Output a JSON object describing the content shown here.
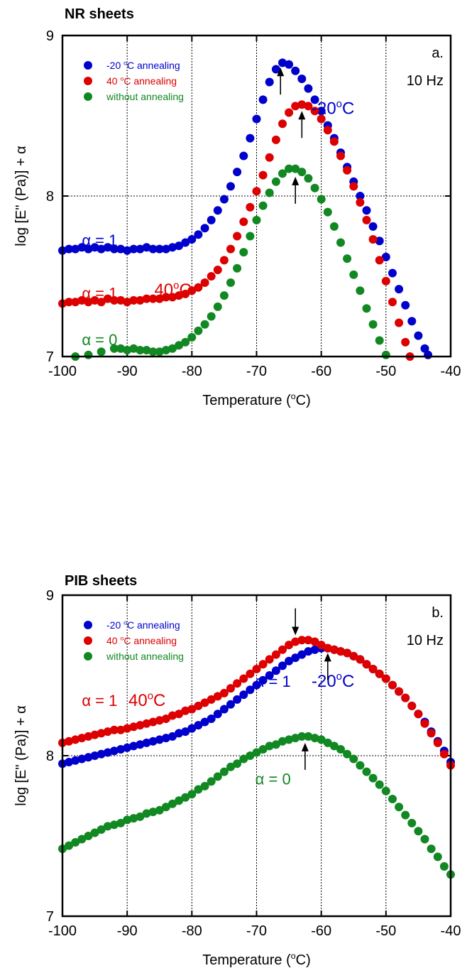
{
  "chart_data": [
    {
      "type": "scatter",
      "title": "NR sheets",
      "xlabel": "Temperature (oC)",
      "ylabel": "log [E\" (Pa)] + α",
      "xlim": [
        -100,
        -40
      ],
      "ylim": [
        7,
        9
      ],
      "xticks": [
        "-100",
        "-90",
        "-80",
        "-70",
        "-60",
        "-50",
        "-40"
      ],
      "yticks": [
        "7",
        "8",
        "9"
      ],
      "grid": true,
      "legend_position": "top-left",
      "panel_label": "a.",
      "frequency": "10 Hz",
      "series": [
        {
          "name": "-20 oC annealing",
          "color": "#0000cc",
          "x": [
            -100,
            -99,
            -98,
            -97,
            -96,
            -95,
            -94,
            -93,
            -92,
            -91,
            -90,
            -89,
            -88,
            -87,
            -86,
            -85,
            -84,
            -83,
            -82,
            -81,
            -80,
            -79,
            -78,
            -77,
            -76,
            -75,
            -74,
            -73,
            -72,
            -71,
            -70,
            -69,
            -68,
            -67,
            -66,
            -65,
            -64,
            -63,
            -62,
            -61,
            -60,
            -59,
            -58,
            -57,
            -56,
            -55,
            -54,
            -53,
            -52,
            -51,
            -50,
            -49,
            -48,
            -47,
            -46,
            -45,
            -44,
            -43.5
          ],
          "y": [
            7.66,
            7.67,
            7.67,
            7.68,
            7.67,
            7.68,
            7.67,
            7.68,
            7.67,
            7.67,
            7.66,
            7.67,
            7.67,
            7.68,
            7.67,
            7.67,
            7.67,
            7.68,
            7.69,
            7.71,
            7.73,
            7.76,
            7.8,
            7.85,
            7.91,
            7.98,
            8.06,
            8.15,
            8.25,
            8.36,
            8.48,
            8.6,
            8.71,
            8.79,
            8.83,
            8.82,
            8.78,
            8.73,
            8.67,
            8.6,
            8.53,
            8.44,
            8.36,
            8.27,
            8.18,
            8.09,
            8.0,
            7.91,
            7.81,
            7.72,
            7.62,
            7.52,
            7.42,
            7.32,
            7.22,
            7.13,
            7.05,
            7.01
          ]
        },
        {
          "name": "40 oC annealing",
          "color": "#dd0000",
          "x": [
            -100,
            -99,
            -98,
            -97,
            -96,
            -95,
            -94,
            -93,
            -92,
            -91,
            -90,
            -89,
            -88,
            -87,
            -86,
            -85,
            -84,
            -83,
            -82,
            -81,
            -80,
            -79,
            -78,
            -77,
            -76,
            -75,
            -74,
            -73,
            -72,
            -71,
            -70,
            -69,
            -68,
            -67,
            -66,
            -65,
            -64,
            -63,
            -62,
            -61,
            -60,
            -59,
            -58,
            -57,
            -56,
            -55,
            -54,
            -53,
            -52,
            -51,
            -50,
            -49,
            -48,
            -47,
            -46.3
          ],
          "y": [
            7.33,
            7.34,
            7.34,
            7.35,
            7.34,
            7.35,
            7.34,
            7.36,
            7.35,
            7.35,
            7.34,
            7.35,
            7.35,
            7.36,
            7.36,
            7.36,
            7.37,
            7.37,
            7.38,
            7.39,
            7.41,
            7.43,
            7.46,
            7.5,
            7.54,
            7.6,
            7.67,
            7.75,
            7.84,
            7.93,
            8.03,
            8.13,
            8.24,
            8.35,
            8.45,
            8.52,
            8.56,
            8.57,
            8.56,
            8.53,
            8.48,
            8.41,
            8.34,
            8.25,
            8.16,
            8.06,
            7.96,
            7.85,
            7.73,
            7.6,
            7.47,
            7.34,
            7.21,
            7.09,
            7.0
          ]
        },
        {
          "name": "without annealing",
          "color": "#118822",
          "x": [
            -98,
            -96,
            -94,
            -92,
            -91,
            -90,
            -89,
            -88,
            -87,
            -86,
            -85,
            -84,
            -83,
            -82,
            -81,
            -80,
            -79,
            -78,
            -77,
            -76,
            -75,
            -74,
            -73,
            -72,
            -71,
            -70,
            -69,
            -68,
            -67,
            -66,
            -65,
            -64,
            -63,
            -62,
            -61,
            -60,
            -59,
            -58,
            -57,
            -56,
            -55,
            -54,
            -53,
            -52,
            -51,
            -50
          ],
          "y": [
            7.0,
            7.01,
            7.03,
            7.05,
            7.05,
            7.04,
            7.05,
            7.04,
            7.04,
            7.03,
            7.03,
            7.04,
            7.05,
            7.07,
            7.09,
            7.12,
            7.16,
            7.2,
            7.25,
            7.31,
            7.38,
            7.46,
            7.55,
            7.65,
            7.75,
            7.85,
            7.94,
            8.02,
            8.09,
            8.14,
            8.17,
            8.17,
            8.15,
            8.11,
            8.05,
            7.98,
            7.9,
            7.81,
            7.71,
            7.61,
            7.51,
            7.41,
            7.3,
            7.2,
            7.1,
            7.01
          ]
        }
      ],
      "annotations": [
        {
          "text": "α = 1",
          "x": -97,
          "y": 7.69,
          "color": "#0000cc",
          "anchor": "start"
        },
        {
          "text": "α = 1",
          "x": -97,
          "y": 7.36,
          "color": "#dd0000",
          "anchor": "start"
        },
        {
          "text": "40oC",
          "x": -85.8,
          "y": 7.38,
          "color": "#dd0000",
          "anchor": "start"
        },
        {
          "text": "α = 0",
          "x": -97,
          "y": 7.07,
          "color": "#118822",
          "anchor": "start"
        },
        {
          "text": "-20oC",
          "x": -61.5,
          "y": 8.51,
          "color": "#0000cc",
          "anchor": "start"
        }
      ],
      "arrows": [
        {
          "x": -66.3,
          "y": 8.8,
          "direction": "up"
        },
        {
          "x": -63,
          "y": 8.53,
          "direction": "up"
        },
        {
          "x": -64,
          "y": 8.12,
          "direction": "up"
        }
      ]
    },
    {
      "type": "scatter",
      "title": "PIB sheets",
      "xlabel": "Temperature (oC)",
      "ylabel": "log [E\" (Pa)] + α",
      "xlim": [
        -100,
        -40
      ],
      "ylim": [
        7,
        9
      ],
      "xticks": [
        "-100",
        "-90",
        "-80",
        "-70",
        "-60",
        "-50",
        "-40"
      ],
      "yticks": [
        "7",
        "8",
        "9"
      ],
      "grid": true,
      "legend_position": "top-left",
      "panel_label": "b.",
      "frequency": "10 Hz",
      "series": [
        {
          "name": "-20 oC annealing",
          "color": "#0000cc",
          "x": [
            -100,
            -99,
            -98,
            -97,
            -96,
            -95,
            -94,
            -93,
            -92,
            -91,
            -90,
            -89,
            -88,
            -87,
            -86,
            -85,
            -84,
            -83,
            -82,
            -81,
            -80,
            -79,
            -78,
            -77,
            -76,
            -75,
            -74,
            -73,
            -72,
            -71,
            -70,
            -69,
            -68,
            -67,
            -66,
            -65,
            -64,
            -63,
            -62,
            -61,
            -60,
            -59,
            -58,
            -57,
            -56,
            -55,
            -54,
            -53,
            -52,
            -51,
            -50,
            -49,
            -48,
            -47,
            -46,
            -45,
            -44,
            -43,
            -42,
            -41,
            -40
          ],
          "y": [
            7.95,
            7.96,
            7.97,
            7.98,
            7.99,
            8.0,
            8.01,
            8.02,
            8.03,
            8.04,
            8.05,
            8.06,
            8.07,
            8.08,
            8.09,
            8.1,
            8.11,
            8.12,
            8.14,
            8.15,
            8.17,
            8.19,
            8.21,
            8.23,
            8.26,
            8.29,
            8.32,
            8.35,
            8.38,
            8.41,
            8.44,
            8.47,
            8.5,
            8.53,
            8.56,
            8.59,
            8.61,
            8.63,
            8.65,
            8.66,
            8.67,
            8.67,
            8.66,
            8.65,
            8.64,
            8.62,
            8.6,
            8.57,
            8.54,
            8.51,
            8.48,
            8.44,
            8.4,
            8.36,
            8.31,
            8.26,
            8.21,
            8.15,
            8.09,
            8.03,
            7.96
          ]
        },
        {
          "name": "40 oC annealing",
          "color": "#dd0000",
          "x": [
            -100,
            -99,
            -98,
            -97,
            -96,
            -95,
            -94,
            -93,
            -92,
            -91,
            -90,
            -89,
            -88,
            -87,
            -86,
            -85,
            -84,
            -83,
            -82,
            -81,
            -80,
            -79,
            -78,
            -77,
            -76,
            -75,
            -74,
            -73,
            -72,
            -71,
            -70,
            -69,
            -68,
            -67,
            -66,
            -65,
            -64,
            -63,
            -62,
            -61,
            -60,
            -59,
            -58,
            -57,
            -56,
            -55,
            -54,
            -53,
            -52,
            -51,
            -50,
            -49,
            -48,
            -47,
            -46,
            -45,
            -44,
            -43,
            -42,
            -41,
            -40
          ],
          "y": [
            8.08,
            8.09,
            8.1,
            8.11,
            8.12,
            8.13,
            8.14,
            8.15,
            8.16,
            8.16,
            8.17,
            8.18,
            8.19,
            8.2,
            8.21,
            8.22,
            8.23,
            8.25,
            8.26,
            8.28,
            8.29,
            8.31,
            8.33,
            8.35,
            8.37,
            8.39,
            8.42,
            8.45,
            8.48,
            8.51,
            8.54,
            8.57,
            8.6,
            8.63,
            8.66,
            8.69,
            8.71,
            8.72,
            8.72,
            8.71,
            8.69,
            8.67,
            8.66,
            8.65,
            8.64,
            8.62,
            8.6,
            8.57,
            8.54,
            8.51,
            8.48,
            8.44,
            8.4,
            8.36,
            8.31,
            8.26,
            8.2,
            8.14,
            8.08,
            8.01,
            7.94
          ]
        },
        {
          "name": "without annealing",
          "color": "#118822",
          "x": [
            -100,
            -99,
            -98,
            -97,
            -96,
            -95,
            -94,
            -93,
            -92,
            -91,
            -90,
            -89,
            -88,
            -87,
            -86,
            -85,
            -84,
            -83,
            -82,
            -81,
            -80,
            -79,
            -78,
            -77,
            -76,
            -75,
            -74,
            -73,
            -72,
            -71,
            -70,
            -69,
            -68,
            -67,
            -66,
            -65,
            -64,
            -63,
            -62,
            -61,
            -60,
            -59,
            -58,
            -57,
            -56,
            -55,
            -54,
            -53,
            -52,
            -51,
            -50,
            -49,
            -48,
            -47,
            -46,
            -45,
            -44,
            -43,
            -42,
            -41,
            -40
          ],
          "y": [
            7.42,
            7.44,
            7.46,
            7.48,
            7.5,
            7.52,
            7.54,
            7.56,
            7.57,
            7.58,
            7.6,
            7.61,
            7.62,
            7.64,
            7.65,
            7.66,
            7.68,
            7.7,
            7.72,
            7.74,
            7.76,
            7.79,
            7.81,
            7.84,
            7.87,
            7.9,
            7.93,
            7.95,
            7.98,
            8.0,
            8.02,
            8.04,
            8.06,
            8.07,
            8.09,
            8.1,
            8.11,
            8.12,
            8.12,
            8.11,
            8.1,
            8.08,
            8.06,
            8.04,
            8.01,
            7.98,
            7.94,
            7.9,
            7.86,
            7.82,
            7.78,
            7.73,
            7.68,
            7.63,
            7.58,
            7.53,
            7.48,
            7.42,
            7.37,
            7.31,
            7.26
          ]
        }
      ],
      "annotations": [
        {
          "text": "α = 1",
          "x": -97,
          "y": 8.31,
          "color": "#dd0000",
          "anchor": "start"
        },
        {
          "text": "40oC",
          "x": -89.8,
          "y": 8.31,
          "color": "#dd0000",
          "anchor": "start"
        },
        {
          "text": "α = 1",
          "x": -70.2,
          "y": 8.43,
          "color": "#0000cc",
          "anchor": "start"
        },
        {
          "text": "-20oC",
          "x": -61.5,
          "y": 8.43,
          "color": "#0000cc",
          "anchor": "start"
        },
        {
          "text": "α = 0",
          "x": -70.2,
          "y": 7.82,
          "color": "#118822",
          "anchor": "start"
        }
      ],
      "arrows": [
        {
          "x": -64,
          "y": 8.75,
          "direction": "down"
        },
        {
          "x": -59,
          "y": 8.64,
          "direction": "up"
        },
        {
          "x": -62.5,
          "y": 8.08,
          "direction": "up"
        }
      ]
    }
  ]
}
